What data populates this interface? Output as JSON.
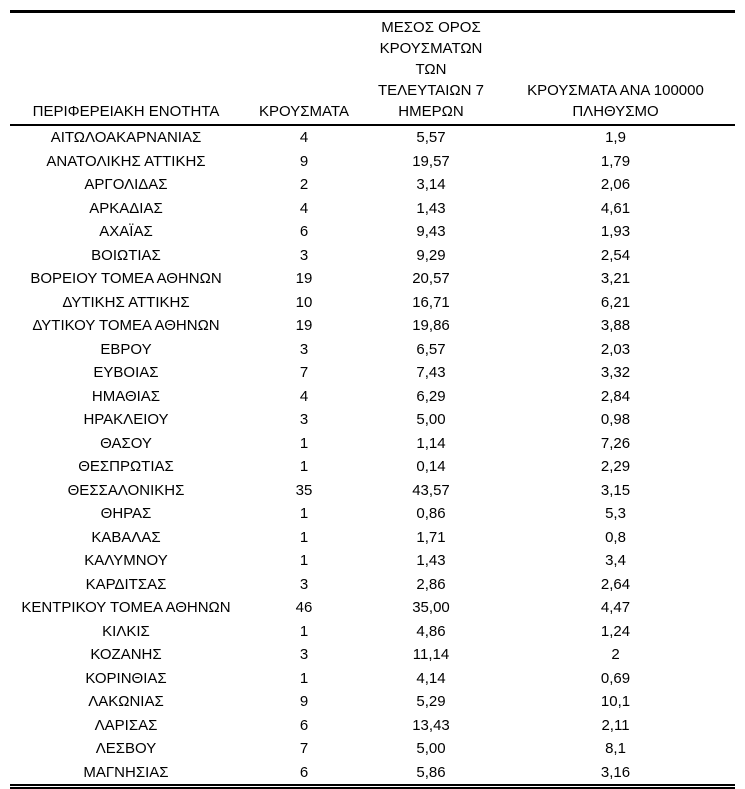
{
  "table": {
    "columns": [
      {
        "id": "region",
        "label": "ΠΕΡΙΦΕΡΕΙΑΚΗ ΕΝΟΤΗΤΑ"
      },
      {
        "id": "cases",
        "label": "ΚΡΟΥΣΜΑΤΑ"
      },
      {
        "id": "avg7days",
        "label": "ΜΕΣΟΣ ΟΡΟΣ\nΚΡΟΥΣΜΑΤΩΝ ΤΩΝ\nΤΕΛΕΥΤΑΙΩΝ 7\nΗΜΕΡΩΝ"
      },
      {
        "id": "per100000",
        "label": "ΚΡΟΥΣΜΑΤΑ ΑΝΑ 100000\nΠΛΗΘΥΣΜΟ"
      }
    ],
    "rows": [
      [
        "ΑΙΤΩΛΟΑΚΑΡΝΑΝΙΑΣ",
        "4",
        "5,57",
        "1,9"
      ],
      [
        "ΑΝΑΤΟΛΙΚΗΣ ΑΤΤΙΚΗΣ",
        "9",
        "19,57",
        "1,79"
      ],
      [
        "ΑΡΓΟΛΙΔΑΣ",
        "2",
        "3,14",
        "2,06"
      ],
      [
        "ΑΡΚΑΔΙΑΣ",
        "4",
        "1,43",
        "4,61"
      ],
      [
        "ΑΧΑΪΑΣ",
        "6",
        "9,43",
        "1,93"
      ],
      [
        "ΒΟΙΩΤΙΑΣ",
        "3",
        "9,29",
        "2,54"
      ],
      [
        "ΒΟΡΕΙΟΥ ΤΟΜΕΑ ΑΘΗΝΩΝ",
        "19",
        "20,57",
        "3,21"
      ],
      [
        "ΔΥΤΙΚΗΣ ΑΤΤΙΚΗΣ",
        "10",
        "16,71",
        "6,21"
      ],
      [
        "ΔΥΤΙΚΟΥ ΤΟΜΕΑ ΑΘΗΝΩΝ",
        "19",
        "19,86",
        "3,88"
      ],
      [
        "ΕΒΡΟΥ",
        "3",
        "6,57",
        "2,03"
      ],
      [
        "ΕΥΒΟΙΑΣ",
        "7",
        "7,43",
        "3,32"
      ],
      [
        "ΗΜΑΘΙΑΣ",
        "4",
        "6,29",
        "2,84"
      ],
      [
        "ΗΡΑΚΛΕΙΟΥ",
        "3",
        "5,00",
        "0,98"
      ],
      [
        "ΘΑΣΟΥ",
        "1",
        "1,14",
        "7,26"
      ],
      [
        "ΘΕΣΠΡΩΤΙΑΣ",
        "1",
        "0,14",
        "2,29"
      ],
      [
        "ΘΕΣΣΑΛΟΝΙΚΗΣ",
        "35",
        "43,57",
        "3,15"
      ],
      [
        "ΘΗΡΑΣ",
        "1",
        "0,86",
        "5,3"
      ],
      [
        "ΚΑΒΑΛΑΣ",
        "1",
        "1,71",
        "0,8"
      ],
      [
        "ΚΑΛΥΜΝΟΥ",
        "1",
        "1,43",
        "3,4"
      ],
      [
        "ΚΑΡΔΙΤΣΑΣ",
        "3",
        "2,86",
        "2,64"
      ],
      [
        "ΚΕΝΤΡΙΚΟΥ ΤΟΜΕΑ ΑΘΗΝΩΝ",
        "46",
        "35,00",
        "4,47"
      ],
      [
        "ΚΙΛΚΙΣ",
        "1",
        "4,86",
        "1,24"
      ],
      [
        "ΚΟΖΑΝΗΣ",
        "3",
        "11,14",
        "2"
      ],
      [
        "ΚΟΡΙΝΘΙΑΣ",
        "1",
        "4,14",
        "0,69"
      ],
      [
        "ΛΑΚΩΝΙΑΣ",
        "9",
        "5,29",
        "10,1"
      ],
      [
        "ΛΑΡΙΣΑΣ",
        "6",
        "13,43",
        "2,11"
      ],
      [
        "ΛΕΣΒΟΥ",
        "7",
        "5,00",
        "8,1"
      ],
      [
        "ΜΑΓΝΗΣΙΑΣ",
        "6",
        "5,86",
        "3,16"
      ]
    ],
    "colors": {
      "text": "#000000",
      "background": "#ffffff",
      "rule": "#000000"
    }
  }
}
